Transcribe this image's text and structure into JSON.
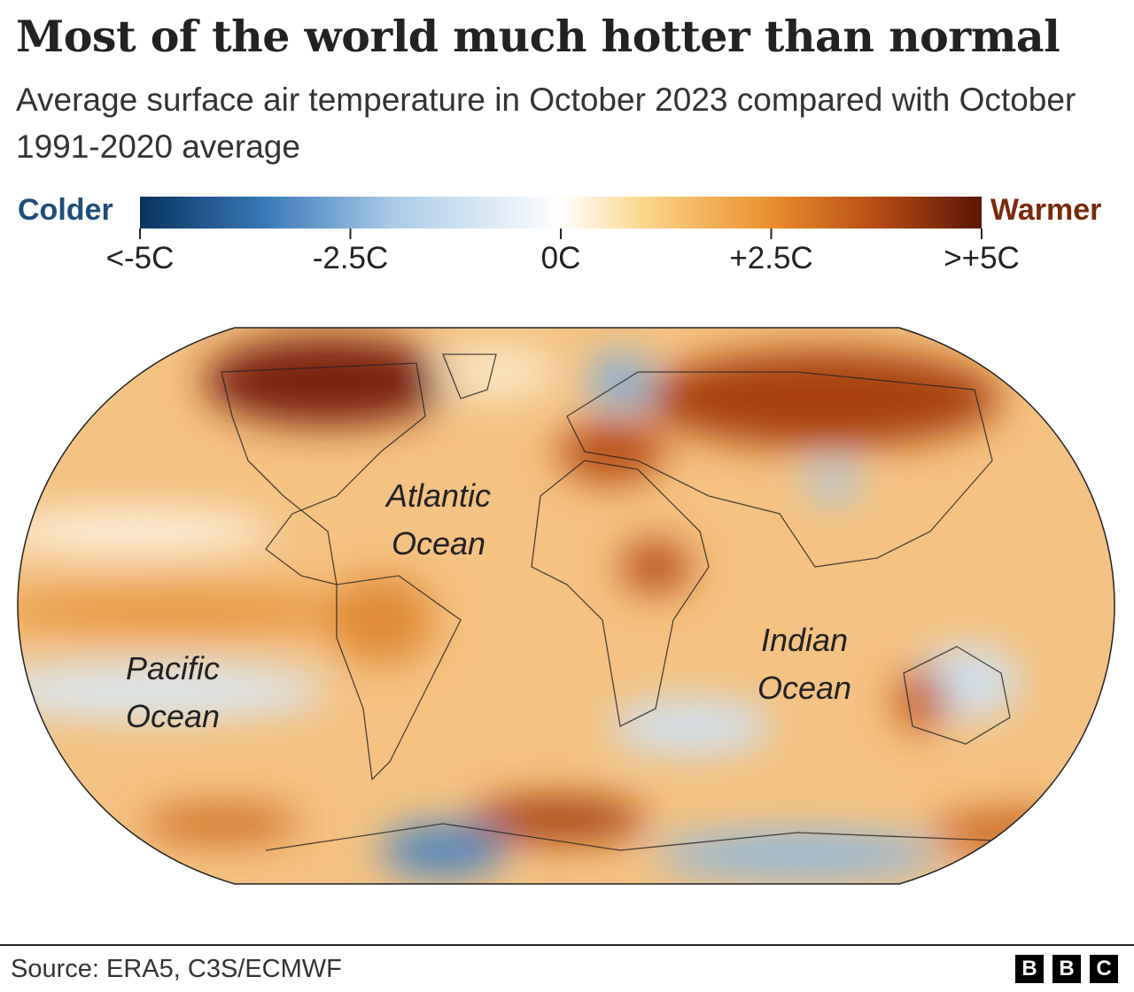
{
  "header": {
    "title": "Most of the world much hotter than normal",
    "subtitle": "Average surface air temperature in October 2023 compared with October 1991-2020 average"
  },
  "legend": {
    "left_label": "Colder",
    "right_label": "Warmer",
    "ticks": [
      "<-5C",
      "-2.5C",
      "0C",
      "+2.5C",
      ">+5C"
    ]
  },
  "map": {
    "labels": [
      {
        "lines": [
          "Atlantic",
          "Ocean"
        ]
      },
      {
        "lines": [
          "Pacific",
          "Ocean"
        ]
      },
      {
        "lines": [
          "Indian",
          "Ocean"
        ]
      }
    ]
  },
  "footer": {
    "source": "Source: ERA5, C3S/ECMWF",
    "logo": [
      "B",
      "B",
      "C"
    ]
  }
}
